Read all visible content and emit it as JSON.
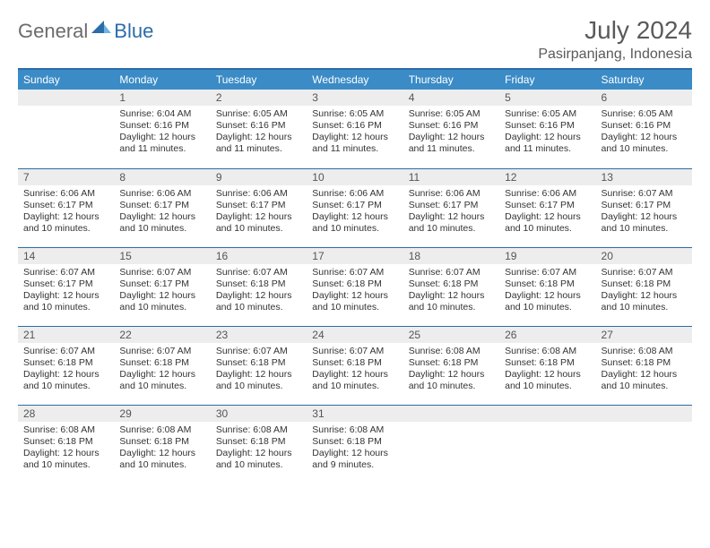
{
  "logo": {
    "general": "General",
    "blue": "Blue"
  },
  "title": "July 2024",
  "location": "Pasirpanjang, Indonesia",
  "colors": {
    "header_bg": "#3b8bc6",
    "header_border": "#2c6ca8",
    "daynum_bg": "#ededed",
    "text": "#333333"
  },
  "day_headers": [
    "Sunday",
    "Monday",
    "Tuesday",
    "Wednesday",
    "Thursday",
    "Friday",
    "Saturday"
  ],
  "weeks": [
    [
      {
        "n": "",
        "sr": "",
        "ss": "",
        "dl": ""
      },
      {
        "n": "1",
        "sr": "Sunrise: 6:04 AM",
        "ss": "Sunset: 6:16 PM",
        "dl": "Daylight: 12 hours and 11 minutes."
      },
      {
        "n": "2",
        "sr": "Sunrise: 6:05 AM",
        "ss": "Sunset: 6:16 PM",
        "dl": "Daylight: 12 hours and 11 minutes."
      },
      {
        "n": "3",
        "sr": "Sunrise: 6:05 AM",
        "ss": "Sunset: 6:16 PM",
        "dl": "Daylight: 12 hours and 11 minutes."
      },
      {
        "n": "4",
        "sr": "Sunrise: 6:05 AM",
        "ss": "Sunset: 6:16 PM",
        "dl": "Daylight: 12 hours and 11 minutes."
      },
      {
        "n": "5",
        "sr": "Sunrise: 6:05 AM",
        "ss": "Sunset: 6:16 PM",
        "dl": "Daylight: 12 hours and 11 minutes."
      },
      {
        "n": "6",
        "sr": "Sunrise: 6:05 AM",
        "ss": "Sunset: 6:16 PM",
        "dl": "Daylight: 12 hours and 10 minutes."
      }
    ],
    [
      {
        "n": "7",
        "sr": "Sunrise: 6:06 AM",
        "ss": "Sunset: 6:17 PM",
        "dl": "Daylight: 12 hours and 10 minutes."
      },
      {
        "n": "8",
        "sr": "Sunrise: 6:06 AM",
        "ss": "Sunset: 6:17 PM",
        "dl": "Daylight: 12 hours and 10 minutes."
      },
      {
        "n": "9",
        "sr": "Sunrise: 6:06 AM",
        "ss": "Sunset: 6:17 PM",
        "dl": "Daylight: 12 hours and 10 minutes."
      },
      {
        "n": "10",
        "sr": "Sunrise: 6:06 AM",
        "ss": "Sunset: 6:17 PM",
        "dl": "Daylight: 12 hours and 10 minutes."
      },
      {
        "n": "11",
        "sr": "Sunrise: 6:06 AM",
        "ss": "Sunset: 6:17 PM",
        "dl": "Daylight: 12 hours and 10 minutes."
      },
      {
        "n": "12",
        "sr": "Sunrise: 6:06 AM",
        "ss": "Sunset: 6:17 PM",
        "dl": "Daylight: 12 hours and 10 minutes."
      },
      {
        "n": "13",
        "sr": "Sunrise: 6:07 AM",
        "ss": "Sunset: 6:17 PM",
        "dl": "Daylight: 12 hours and 10 minutes."
      }
    ],
    [
      {
        "n": "14",
        "sr": "Sunrise: 6:07 AM",
        "ss": "Sunset: 6:17 PM",
        "dl": "Daylight: 12 hours and 10 minutes."
      },
      {
        "n": "15",
        "sr": "Sunrise: 6:07 AM",
        "ss": "Sunset: 6:17 PM",
        "dl": "Daylight: 12 hours and 10 minutes."
      },
      {
        "n": "16",
        "sr": "Sunrise: 6:07 AM",
        "ss": "Sunset: 6:18 PM",
        "dl": "Daylight: 12 hours and 10 minutes."
      },
      {
        "n": "17",
        "sr": "Sunrise: 6:07 AM",
        "ss": "Sunset: 6:18 PM",
        "dl": "Daylight: 12 hours and 10 minutes."
      },
      {
        "n": "18",
        "sr": "Sunrise: 6:07 AM",
        "ss": "Sunset: 6:18 PM",
        "dl": "Daylight: 12 hours and 10 minutes."
      },
      {
        "n": "19",
        "sr": "Sunrise: 6:07 AM",
        "ss": "Sunset: 6:18 PM",
        "dl": "Daylight: 12 hours and 10 minutes."
      },
      {
        "n": "20",
        "sr": "Sunrise: 6:07 AM",
        "ss": "Sunset: 6:18 PM",
        "dl": "Daylight: 12 hours and 10 minutes."
      }
    ],
    [
      {
        "n": "21",
        "sr": "Sunrise: 6:07 AM",
        "ss": "Sunset: 6:18 PM",
        "dl": "Daylight: 12 hours and 10 minutes."
      },
      {
        "n": "22",
        "sr": "Sunrise: 6:07 AM",
        "ss": "Sunset: 6:18 PM",
        "dl": "Daylight: 12 hours and 10 minutes."
      },
      {
        "n": "23",
        "sr": "Sunrise: 6:07 AM",
        "ss": "Sunset: 6:18 PM",
        "dl": "Daylight: 12 hours and 10 minutes."
      },
      {
        "n": "24",
        "sr": "Sunrise: 6:07 AM",
        "ss": "Sunset: 6:18 PM",
        "dl": "Daylight: 12 hours and 10 minutes."
      },
      {
        "n": "25",
        "sr": "Sunrise: 6:08 AM",
        "ss": "Sunset: 6:18 PM",
        "dl": "Daylight: 12 hours and 10 minutes."
      },
      {
        "n": "26",
        "sr": "Sunrise: 6:08 AM",
        "ss": "Sunset: 6:18 PM",
        "dl": "Daylight: 12 hours and 10 minutes."
      },
      {
        "n": "27",
        "sr": "Sunrise: 6:08 AM",
        "ss": "Sunset: 6:18 PM",
        "dl": "Daylight: 12 hours and 10 minutes."
      }
    ],
    [
      {
        "n": "28",
        "sr": "Sunrise: 6:08 AM",
        "ss": "Sunset: 6:18 PM",
        "dl": "Daylight: 12 hours and 10 minutes."
      },
      {
        "n": "29",
        "sr": "Sunrise: 6:08 AM",
        "ss": "Sunset: 6:18 PM",
        "dl": "Daylight: 12 hours and 10 minutes."
      },
      {
        "n": "30",
        "sr": "Sunrise: 6:08 AM",
        "ss": "Sunset: 6:18 PM",
        "dl": "Daylight: 12 hours and 10 minutes."
      },
      {
        "n": "31",
        "sr": "Sunrise: 6:08 AM",
        "ss": "Sunset: 6:18 PM",
        "dl": "Daylight: 12 hours and 9 minutes."
      },
      {
        "n": "",
        "sr": "",
        "ss": "",
        "dl": ""
      },
      {
        "n": "",
        "sr": "",
        "ss": "",
        "dl": ""
      },
      {
        "n": "",
        "sr": "",
        "ss": "",
        "dl": ""
      }
    ]
  ]
}
